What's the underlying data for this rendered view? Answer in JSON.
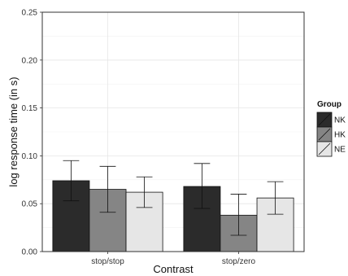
{
  "chart_data": {
    "type": "bar",
    "title": "",
    "xlabel": "Contrast",
    "ylabel": "log response time (in s)",
    "categories": [
      "stop/stop",
      "stop/zero"
    ],
    "ylim": [
      0,
      0.25
    ],
    "yticks": [
      "0.00",
      "0.05",
      "0.10",
      "0.15",
      "0.20",
      "0.25"
    ],
    "grid": true,
    "legend": {
      "title": "Group",
      "position": "right"
    },
    "series": [
      {
        "name": "NK",
        "color": "#2b2b2b",
        "values": [
          0.074,
          0.068
        ],
        "error_low": [
          0.053,
          0.045
        ],
        "error_high": [
          0.095,
          0.092
        ]
      },
      {
        "name": "HK",
        "color": "#858585",
        "values": [
          0.065,
          0.038
        ],
        "error_low": [
          0.041,
          0.017
        ],
        "error_high": [
          0.089,
          0.06
        ]
      },
      {
        "name": "NE",
        "color": "#e6e6e6",
        "values": [
          0.062,
          0.056
        ],
        "error_low": [
          0.046,
          0.039
        ],
        "error_high": [
          0.078,
          0.073
        ]
      }
    ]
  }
}
